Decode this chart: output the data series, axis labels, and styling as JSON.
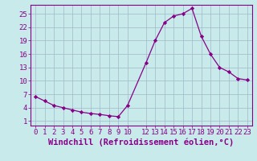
{
  "x": [
    0,
    1,
    2,
    3,
    4,
    5,
    6,
    7,
    8,
    9,
    10,
    12,
    13,
    14,
    15,
    16,
    17,
    18,
    19,
    20,
    21,
    22,
    23
  ],
  "y": [
    6.5,
    5.5,
    4.5,
    4.0,
    3.5,
    3.0,
    2.7,
    2.5,
    2.2,
    2.0,
    4.5,
    14.0,
    19.0,
    23.0,
    24.5,
    25.0,
    26.2,
    20.0,
    16.0,
    13.0,
    12.0,
    10.5,
    10.2
  ],
  "line_color": "#880088",
  "marker": "D",
  "marker_size": 2.2,
  "bg_color": "#c8eaea",
  "grid_color": "#a0b8c8",
  "xlabel": "Windchill (Refroidissement éolien,°C)",
  "xlabel_color": "#880088",
  "yticks": [
    1,
    4,
    7,
    10,
    13,
    16,
    19,
    22,
    25
  ],
  "xtick_positions": [
    0,
    1,
    2,
    3,
    4,
    5,
    6,
    7,
    8,
    9,
    10,
    12,
    13,
    14,
    15,
    16,
    17,
    18,
    19,
    20,
    21,
    22,
    23
  ],
  "xtick_labels": [
    "0",
    "1",
    "2",
    "3",
    "4",
    "5",
    "6",
    "7",
    "8",
    "9",
    "10",
    "12",
    "13",
    "14",
    "15",
    "16",
    "17",
    "18",
    "19",
    "20",
    "21",
    "22",
    "23"
  ],
  "ylim": [
    0,
    27
  ],
  "xlim": [
    -0.5,
    23.5
  ],
  "tick_color": "#880088",
  "tick_fontsize": 6.5,
  "xlabel_fontsize": 7.5
}
